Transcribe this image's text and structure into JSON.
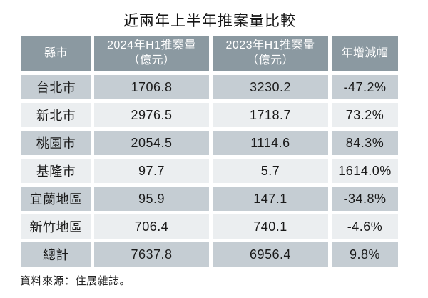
{
  "title": "近兩年上半年推案量比較",
  "source_note": "資料來源：住展雜誌。",
  "colors": {
    "header_bg": "#8B99A1",
    "header_text": "#FFFFFF",
    "row_dark": "#C5CDD3",
    "row_light": "#EBEEF0",
    "cell_text": "#1A1A1A",
    "title_text": "#161616"
  },
  "table": {
    "headers": [
      {
        "line1": "縣市",
        "line2": ""
      },
      {
        "line1": "2024年H1推案量",
        "line2": "（億元）"
      },
      {
        "line1": "2023年H1推案量",
        "line2": "（億元）"
      },
      {
        "line1": "年增減幅",
        "line2": ""
      }
    ],
    "rows": [
      {
        "region": "台北市",
        "v2024": "1706.8",
        "v2023": "3230.2",
        "yoy": "-47.2%"
      },
      {
        "region": "新北市",
        "v2024": "2976.5",
        "v2023": "1718.7",
        "yoy": "73.2%"
      },
      {
        "region": "桃園市",
        "v2024": "2054.5",
        "v2023": "1114.6",
        "yoy": "84.3%"
      },
      {
        "region": "基隆市",
        "v2024": "97.7",
        "v2023": "5.7",
        "yoy": "1614.0%"
      },
      {
        "region": "宜蘭地區",
        "v2024": "95.9",
        "v2023": "147.1",
        "yoy": "-34.8%"
      },
      {
        "region": "新竹地區",
        "v2024": "706.4",
        "v2023": "740.1",
        "yoy": "-4.6%"
      },
      {
        "region": "總計",
        "v2024": "7637.8",
        "v2023": "6956.4",
        "yoy": "9.8%"
      }
    ]
  },
  "chart_data": {
    "type": "table",
    "title": "近兩年上半年推案量比較",
    "columns": [
      "縣市",
      "2024年H1推案量（億元）",
      "2023年H1推案量（億元）",
      "年增減幅"
    ],
    "rows": [
      [
        "台北市",
        1706.8,
        3230.2,
        "-47.2%"
      ],
      [
        "新北市",
        2976.5,
        1718.7,
        "73.2%"
      ],
      [
        "桃園市",
        2054.5,
        1114.6,
        "84.3%"
      ],
      [
        "基隆市",
        97.7,
        5.7,
        "1614.0%"
      ],
      [
        "宜蘭地區",
        95.9,
        147.1,
        "-34.8%"
      ],
      [
        "新竹地區",
        706.4,
        740.1,
        "-4.6%"
      ],
      [
        "總計",
        7637.8,
        6956.4,
        "9.8%"
      ]
    ],
    "source": "資料來源：住展雜誌。"
  }
}
